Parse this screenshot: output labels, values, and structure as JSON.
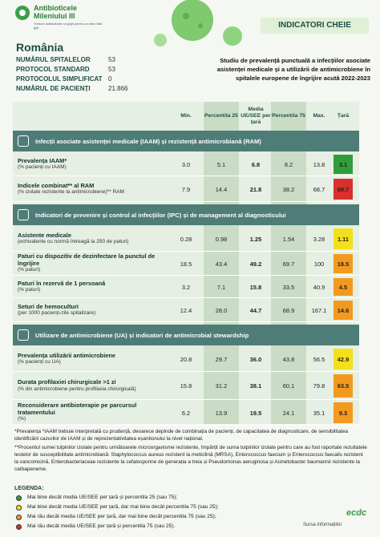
{
  "header": {
    "logo_title": "Antibioticele Mileniului III",
    "logo_tagline": "Trebuie antibioticele cu grijă pentru un viitor fără griji",
    "badge": "INDICATORI CHEIE",
    "country": "România",
    "stats": [
      {
        "label": "NUMĂRUL SPITALELOR",
        "value": "53"
      },
      {
        "label": "PROTOCOL STANDARD",
        "value": "53"
      },
      {
        "label": "PROTOCOLUL SIMPLIFICAT",
        "value": "0"
      },
      {
        "label": "NUMĂRUL DE PACIENȚI",
        "value": "21.866"
      }
    ],
    "study_title": "Studiu de prevalență punctuală a infecțiilor asociate asistenței medicale și a utilizării de antimicrobiene în spitalele europene de îngrijire acută 2022-2023"
  },
  "table": {
    "columns": [
      "Min.",
      "Percentila 25",
      "Media UE/SEE per țară",
      "Percentila 75",
      "Max.",
      "Țară"
    ],
    "sections": [
      {
        "title": "Infecții asociate asistenței medicale (IAAM) și rezistență antimicrobiană (RAM)",
        "rows": [
          {
            "label": "Prevalența IAAM*",
            "note": "(% pacienți cu IAAM)",
            "cells": [
              "3.0",
              "5.1",
              "6.8",
              "8.2",
              "13.8",
              "3.1"
            ],
            "color": "#2f9e3a"
          },
          {
            "label": "Indicele combinat** al RAM",
            "note": "(% izolate rezistente la antimicrobiene)** RAM",
            "cells": [
              "7.9",
              "14.4",
              "21.8",
              "38.2",
              "68.7",
              "68.7"
            ],
            "color": "#d9302c"
          }
        ]
      },
      {
        "title": "Indicatori de prevenire și control al infecțiilor (IPC) și de management al diagnosticului",
        "rows": [
          {
            "label": "Asistente medicale",
            "note": "(echivalente cu normă întreagă la 250 de paturi)",
            "cells": [
              "0.28",
              "0.98",
              "1.25",
              "1.54",
              "3.28",
              "1.11"
            ],
            "color": "#f4e01a"
          },
          {
            "label": "Paturi cu dispozitiv de dezinfectare la punctul de îngrijire",
            "note": "(% paturi)",
            "cells": [
              "18.5",
              "43.4",
              "49.2",
              "69.7",
              "100",
              "18.5"
            ],
            "color": "#f39a1e"
          },
          {
            "label": "Paturi în rezervă de 1 persoană",
            "note": "(% paturi)",
            "cells": [
              "3.2",
              "7.1",
              "15.8",
              "33.5",
              "40.9",
              "4.5"
            ],
            "color": "#f39a1e"
          },
          {
            "label": "Seturi de hemoculturi",
            "note": "(per 1000 pacienți-zile spitalizare)",
            "cells": [
              "12.4",
              "28.0",
              "44.7",
              "68.9",
              "167.1",
              "14.6"
            ],
            "color": "#f39a1e"
          }
        ]
      },
      {
        "title": "Utilizare de antimicrobiene (UA) și indicatori de antimicrobial stewardship",
        "rows": [
          {
            "label": "Prevalența utilizării antimicrobiene",
            "note": "(% pacienți cu UA)",
            "cells": [
              "20.8",
              "29.7",
              "36.0",
              "43.8",
              "56.5",
              "42.9"
            ],
            "color": "#f4e01a"
          },
          {
            "label": "Durata profilaxiei chirurgicale >1 zi",
            "note": "(% din antimicrobiene pentru profilaxia chirurgicală)",
            "cells": [
              "15.8",
              "31.2",
              "38.1",
              "60.1",
              "79.8",
              "63.5"
            ],
            "color": "#f39a1e"
          },
          {
            "label": "Reconsiderare antibioterapie pe parcursul tratamentului",
            "note": "(%)",
            "cells": [
              "6.2",
              "13.9",
              "19.5",
              "24.1",
              "35.1",
              "9.3"
            ],
            "color": "#f39a1e"
          }
        ]
      }
    ]
  },
  "footnotes": [
    "*Prevalența *IAAM trebuie interpretată cu prudență, deoarece depinde de combinația de pacienți, de capacitatea de diagnosticare, de sensibilitatea identificării cazurilor de IAAM și de reprezentativitatea eșantionului la nivel național.",
    "**Procentul sumei tulpinilor izolate pentru următoarele microorganisme rezistente, împărțit de suma tulpinilor izolate pentru care au fost raportate rezultatele testelor de susceptibilitate antimicrobiană: Staphylococcus aureus rezistent la meticilină (MRSA), Enterococcus faecium și Enterococcus faecalis rezistent la vancomicină, Enterobacteriaceae rezistente la cefalosporine de generația a treia și Pseudomonas aeruginosa și Acinetobacter baumannii rezistente la carbapeneme."
  ],
  "legend": {
    "title": "LEGENDA:",
    "items": [
      {
        "text": "Mai bine decât media UE/SEE per țară și percentila 25 (sau 75);",
        "color": "#2f9e3a"
      },
      {
        "text": "Mai bine decât media UE/SEE per țară, dar mai bine decât percentila 75 (sau 25);",
        "color": "#f4e01a"
      },
      {
        "text": "Mai rău decât media UE/SEE per țară, dar mai bine decât percentila 75 (sau 25);",
        "color": "#f39a1e"
      },
      {
        "text": "Mai rău decât media UE/SEE per țară și percentila 75 (sau 25).",
        "color": "#d9302c"
      }
    ]
  },
  "source": {
    "label": "Sursa informațiilor",
    "logo": "ecdc"
  }
}
